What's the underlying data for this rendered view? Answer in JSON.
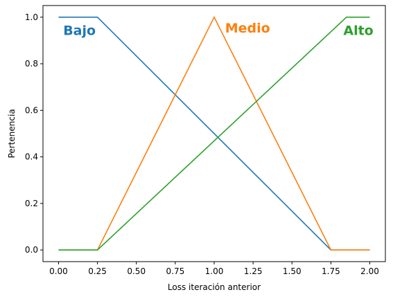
{
  "chart_data": {
    "type": "line",
    "title": "",
    "xlabel": "Loss iteración anterior",
    "ylabel": "Pertenencia",
    "xlim": [
      -0.1,
      2.1
    ],
    "ylim": [
      -0.05,
      1.05
    ],
    "xticks": [
      0.0,
      0.25,
      0.5,
      0.75,
      1.0,
      1.25,
      1.5,
      1.75,
      2.0
    ],
    "xtick_labels": [
      "0.00",
      "0.25",
      "0.50",
      "0.75",
      "1.00",
      "1.25",
      "1.50",
      "1.75",
      "2.00"
    ],
    "yticks": [
      0.0,
      0.2,
      0.4,
      0.6,
      0.8,
      1.0
    ],
    "ytick_labels": [
      "0.0",
      "0.2",
      "0.4",
      "0.6",
      "0.8",
      "1.0"
    ],
    "grid": false,
    "series": [
      {
        "name": "Bajo",
        "color": "#1f77b4",
        "x": [
          0.0,
          0.25,
          1.75,
          2.0
        ],
        "y": [
          1.0,
          1.0,
          0.0,
          0.0
        ],
        "label_at": [
          0.03,
          0.945
        ]
      },
      {
        "name": "Medio",
        "color": "#ff7f0e",
        "x": [
          0.0,
          0.25,
          1.0,
          1.75,
          2.0
        ],
        "y": [
          0.0,
          0.0,
          1.0,
          0.0,
          0.0
        ],
        "label_at": [
          1.07,
          0.955
        ]
      },
      {
        "name": "Alto",
        "color": "#2ca02c",
        "x": [
          0.0,
          0.25,
          1.85,
          2.0
        ],
        "y": [
          0.0,
          0.0,
          1.0,
          1.0
        ],
        "label_at": [
          1.83,
          0.945
        ]
      }
    ]
  }
}
